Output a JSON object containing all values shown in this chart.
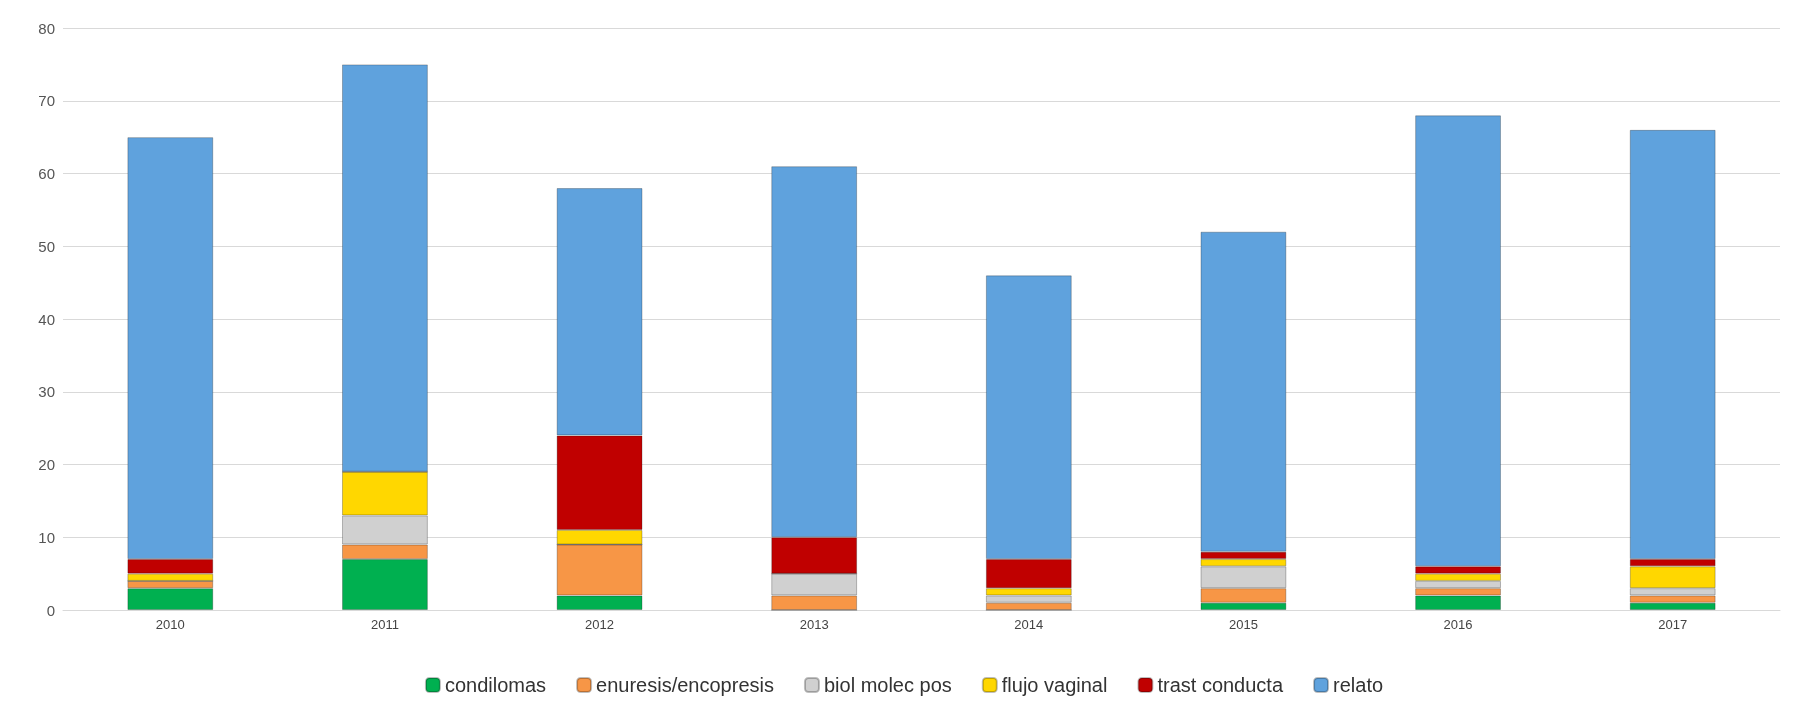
{
  "chart_data": {
    "type": "bar",
    "stacked": true,
    "categories": [
      "2010",
      "2011",
      "2012",
      "2013",
      "2014",
      "2015",
      "2016",
      "2017"
    ],
    "series": [
      {
        "name": "condilomas",
        "color": "#00b050",
        "values": [
          3,
          7,
          2,
          0,
          0,
          1,
          2,
          1
        ]
      },
      {
        "name": "enuresis/encopresis",
        "color": "#f79646",
        "values": [
          1,
          2,
          7,
          2,
          1,
          2,
          1,
          1
        ]
      },
      {
        "name": "biol molec pos",
        "color": "#d0d0d0",
        "values": [
          0,
          4,
          0,
          3,
          1,
          3,
          1,
          1
        ]
      },
      {
        "name": "flujo vaginal",
        "color": "#ffd700",
        "values": [
          1,
          6,
          2,
          0,
          1,
          1,
          1,
          3
        ]
      },
      {
        "name": "trast conducta",
        "color": "#c00000",
        "values": [
          2,
          0,
          13,
          5,
          4,
          1,
          1,
          1
        ]
      },
      {
        "name": "relato",
        "color": "#5fa2dd",
        "values": [
          58,
          56,
          34,
          51,
          39,
          44,
          62,
          59
        ]
      }
    ],
    "ylim": [
      0,
      80
    ],
    "yticks": [
      0,
      10,
      20,
      30,
      40,
      50,
      60,
      70,
      80
    ],
    "grid": "y",
    "legend": "bottom"
  }
}
